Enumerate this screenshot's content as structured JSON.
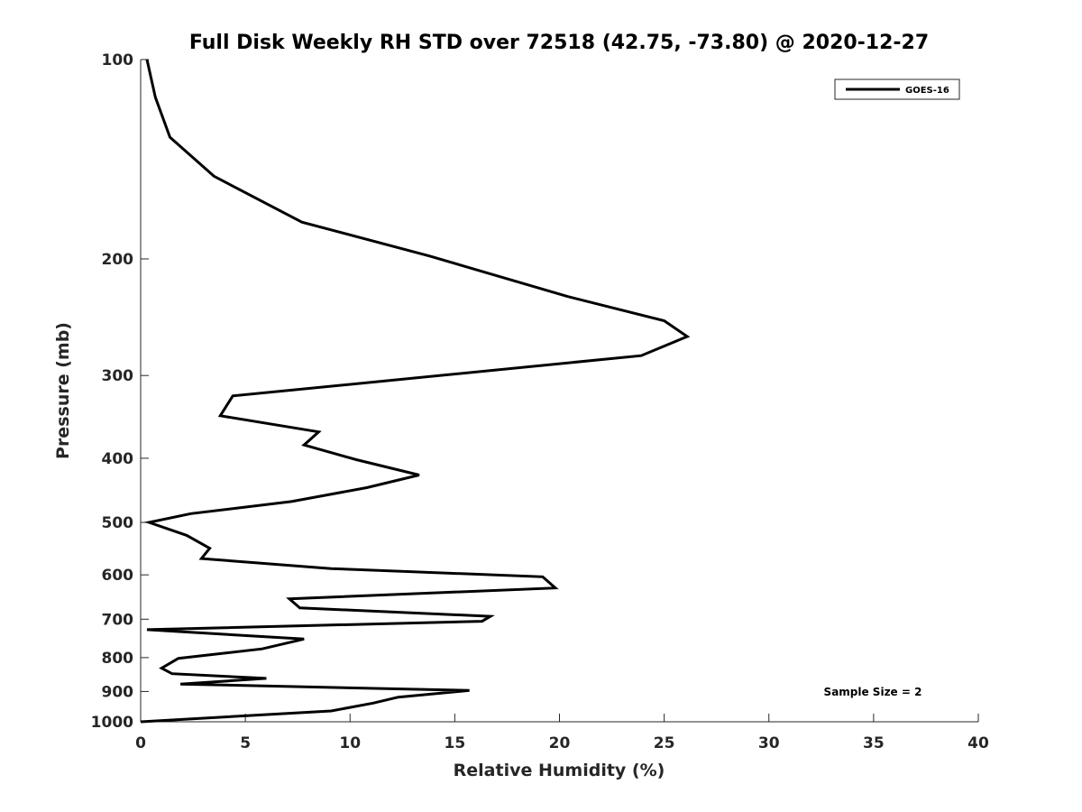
{
  "chart_data": {
    "type": "line",
    "title": "Full Disk Weekly RH STD over 72518 (42.75, -73.80) @ 2020-12-27",
    "xlabel": "Relative Humidity (%)",
    "ylabel": "Pressure (mb)",
    "xlim": [
      0,
      40
    ],
    "ylim": [
      100,
      1000
    ],
    "yscale": "log",
    "yreversed": true,
    "xticks": [
      0,
      5,
      10,
      15,
      20,
      25,
      30,
      35,
      40
    ],
    "xtick_labels": [
      "0",
      "5",
      "10",
      "15",
      "20",
      "25",
      "30",
      "35",
      "40"
    ],
    "yticks": [
      100,
      200,
      300,
      400,
      500,
      600,
      700,
      800,
      900,
      1000
    ],
    "ytick_labels": [
      "100",
      "200",
      "300",
      "400",
      "500",
      "600",
      "700",
      "800",
      "900",
      "1000"
    ],
    "grid": false,
    "legend_position": "top-right",
    "annotation": "Sample Size = 2",
    "series": [
      {
        "name": "GOES-16",
        "color": "#000000",
        "x": [
          0.3,
          0.7,
          1.4,
          3.5,
          7.7,
          13.8,
          20.4,
          25.0,
          26.1,
          23.9,
          4.4,
          3.8,
          8.5,
          7.8,
          10.3,
          13.3,
          10.8,
          7.2,
          2.4,
          0.4,
          2.2,
          3.3,
          2.9,
          9.1,
          19.2,
          19.8,
          7.1,
          7.6,
          16.7,
          16.3,
          0.3,
          7.8,
          5.8,
          1.8,
          1.0,
          1.5,
          6.0,
          1.9,
          15.7,
          12.3,
          11.1,
          9.1,
          0.0
        ],
        "y": [
          100,
          114,
          131,
          150,
          176,
          198,
          228,
          248,
          262,
          280,
          322,
          345,
          365,
          382,
          402,
          424,
          443,
          465,
          485,
          500,
          523,
          547,
          567,
          587,
          604,
          628,
          652,
          673,
          693,
          705,
          726,
          750,
          776,
          802,
          830,
          846,
          860,
          877,
          897,
          918,
          937,
          963,
          1000
        ]
      }
    ]
  }
}
